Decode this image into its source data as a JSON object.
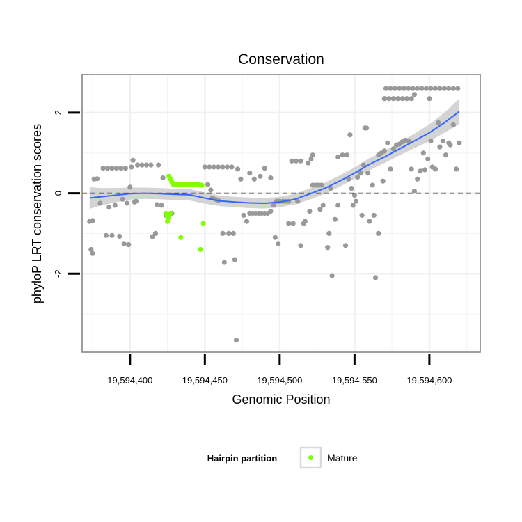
{
  "chart_data": {
    "type": "scatter",
    "title": "Conservation",
    "xlabel": "Genomic Position",
    "ylabel": "phyloP LRT conservation scores",
    "xlim": [
      19594368,
      19594634
    ],
    "ylim": [
      -3.95,
      2.95
    ],
    "x_ticks": [
      19594400,
      19594450,
      19594500,
      19594550,
      19594600
    ],
    "x_tick_labels": [
      "19,594,400",
      "19,594,450",
      "19,594,500",
      "19,594,550",
      "19,594,600"
    ],
    "y_ticks": [
      -2,
      0,
      2
    ],
    "y_tick_labels": [
      "-2",
      "0",
      "2"
    ],
    "reference_line": 0,
    "grid": true,
    "legend": {
      "title": "Hairpin partition",
      "entries": [
        {
          "label": "Mature",
          "color": "#7fff00"
        }
      ],
      "placement": "bottom"
    },
    "colors": {
      "other_points": "#999999",
      "mature_points": "#7fff00",
      "smooth_line": "#3366ff",
      "confidence_band": "#cccccc"
    },
    "smooth": {
      "x": [
        19594373,
        19594380,
        19594390,
        19594400,
        19594410,
        19594420,
        19594430,
        19594440,
        19594450,
        19594460,
        19594470,
        19594480,
        19594490,
        19594500,
        19594510,
        19594520,
        19594530,
        19594540,
        19594550,
        19594560,
        19594570,
        19594580,
        19594590,
        19594600,
        19594610,
        19594620
      ],
      "y": [
        -0.12,
        -0.09,
        -0.05,
        -0.01,
        0.0,
        -0.01,
        -0.03,
        -0.04,
        -0.12,
        -0.19,
        -0.22,
        -0.24,
        -0.25,
        -0.22,
        -0.15,
        -0.02,
        0.12,
        0.3,
        0.5,
        0.72,
        0.9,
        1.1,
        1.3,
        1.5,
        1.75,
        2.03
      ],
      "se": [
        0.27,
        0.22,
        0.18,
        0.15,
        0.14,
        0.14,
        0.14,
        0.14,
        0.14,
        0.13,
        0.13,
        0.13,
        0.13,
        0.13,
        0.13,
        0.14,
        0.14,
        0.14,
        0.14,
        0.15,
        0.15,
        0.16,
        0.18,
        0.21,
        0.25,
        0.32
      ]
    },
    "series": [
      {
        "name": "Other",
        "points": [
          [
            19594373,
            -0.7
          ],
          [
            19594375,
            -0.68
          ],
          [
            19594374,
            -1.4
          ],
          [
            19594375,
            -1.5
          ],
          [
            19594376,
            0.35
          ],
          [
            19594378,
            0.36
          ],
          [
            19594380,
            -0.25
          ],
          [
            19594382,
            0.62
          ],
          [
            19594385,
            0.62
          ],
          [
            19594388,
            0.62
          ],
          [
            19594391,
            0.62
          ],
          [
            19594394,
            0.62
          ],
          [
            19594397,
            0.62
          ],
          [
            19594384,
            -1.05
          ],
          [
            19594388,
            -1.05
          ],
          [
            19594386,
            -0.35
          ],
          [
            19594390,
            -0.3
          ],
          [
            19594393,
            -1.07
          ],
          [
            19594395,
            -0.15
          ],
          [
            19594398,
            -0.25
          ],
          [
            19594396,
            -1.25
          ],
          [
            19594399,
            -1.28
          ],
          [
            19594400,
            0.15
          ],
          [
            19594401,
            0.65
          ],
          [
            19594402,
            0.82
          ],
          [
            19594403,
            -0.22
          ],
          [
            19594404,
            -0.2
          ],
          [
            19594405,
            0.7
          ],
          [
            19594408,
            0.7
          ],
          [
            19594411,
            0.7
          ],
          [
            19594414,
            0.7
          ],
          [
            19594415,
            -1.08
          ],
          [
            19594417,
            -1.0
          ],
          [
            19594419,
            0.7
          ],
          [
            19594418,
            -0.28
          ],
          [
            19594421,
            -0.3
          ],
          [
            19594422,
            0.38
          ],
          [
            19594424,
            -0.55
          ],
          [
            19594428,
            -0.5
          ],
          [
            19594450,
            0.65
          ],
          [
            19594453,
            0.65
          ],
          [
            19594456,
            0.65
          ],
          [
            19594459,
            0.65
          ],
          [
            19594462,
            0.65
          ],
          [
            19594465,
            0.65
          ],
          [
            19594468,
            0.65
          ],
          [
            19594452,
            0.22
          ],
          [
            19594454,
            0.08
          ],
          [
            19594455,
            -0.12
          ],
          [
            19594457,
            -0.15
          ],
          [
            19594459,
            -0.18
          ],
          [
            19594462,
            -1.0
          ],
          [
            19594463,
            -1.72
          ],
          [
            19594466,
            -1.0
          ],
          [
            19594469,
            -1.0
          ],
          [
            19594470,
            -1.65
          ],
          [
            19594471,
            -3.65
          ],
          [
            19594472,
            0.6
          ],
          [
            19594474,
            0.35
          ],
          [
            19594476,
            -0.55
          ],
          [
            19594478,
            -0.7
          ],
          [
            19594480,
            -0.5
          ],
          [
            19594482,
            -0.5
          ],
          [
            19594484,
            -0.5
          ],
          [
            19594486,
            -0.5
          ],
          [
            19594488,
            -0.5
          ],
          [
            19594490,
            -0.5
          ],
          [
            19594492,
            -0.5
          ],
          [
            19594480,
            0.5
          ],
          [
            19594483,
            0.35
          ],
          [
            19594487,
            0.42
          ],
          [
            19594490,
            0.62
          ],
          [
            19594494,
            -0.45
          ],
          [
            19594496,
            -0.3
          ],
          [
            19594494,
            0.38
          ],
          [
            19594498,
            -0.2
          ],
          [
            19594500,
            -0.2
          ],
          [
            19594502,
            -0.2
          ],
          [
            19594504,
            -0.2
          ],
          [
            19594506,
            -0.2
          ],
          [
            19594497,
            -1.1
          ],
          [
            19594499,
            -1.25
          ],
          [
            19594506,
            -0.75
          ],
          [
            19594509,
            -0.75
          ],
          [
            19594508,
            0.8
          ],
          [
            19594511,
            0.8
          ],
          [
            19594514,
            0.8
          ],
          [
            19594512,
            -0.2
          ],
          [
            19594514,
            -1.3
          ],
          [
            19594516,
            -0.75
          ],
          [
            19594517,
            -0.7
          ],
          [
            19594519,
            0.75
          ],
          [
            19594521,
            0.85
          ],
          [
            19594522,
            0.95
          ],
          [
            19594520,
            -0.45
          ],
          [
            19594522,
            0.2
          ],
          [
            19594524,
            0.2
          ],
          [
            19594526,
            0.2
          ],
          [
            19594528,
            0.2
          ],
          [
            19594527,
            -0.4
          ],
          [
            19594529,
            -0.3
          ],
          [
            19594532,
            -1.35
          ],
          [
            19594533,
            -1.0
          ],
          [
            19594535,
            -2.05
          ],
          [
            19594534,
            0.12
          ],
          [
            19594537,
            -0.65
          ],
          [
            19594539,
            -0.3
          ],
          [
            19594539,
            0.9
          ],
          [
            19594542,
            0.95
          ],
          [
            19594545,
            0.95
          ],
          [
            19594547,
            1.45
          ],
          [
            19594544,
            -1.3
          ],
          [
            19594546,
            0.35
          ],
          [
            19594548,
            0.12
          ],
          [
            19594549,
            -0.3
          ],
          [
            19594550,
            -0.05
          ],
          [
            19594551,
            -0.2
          ],
          [
            19594552,
            0.4
          ],
          [
            19594554,
            0.5
          ],
          [
            19594555,
            -0.55
          ],
          [
            19594556,
            0.7
          ],
          [
            19594557,
            1.62
          ],
          [
            19594558,
            1.62
          ],
          [
            19594559,
            0.5
          ],
          [
            19594560,
            -0.7
          ],
          [
            19594562,
            0.2
          ],
          [
            19594563,
            -0.55
          ],
          [
            19594564,
            -2.1
          ],
          [
            19594566,
            0.95
          ],
          [
            19594568,
            1.0
          ],
          [
            19594566,
            -1.0
          ],
          [
            19594569,
            0.3
          ],
          [
            19594570,
            1.05
          ],
          [
            19594572,
            1.25
          ],
          [
            19594574,
            0.6
          ],
          [
            19594576,
            1.1
          ],
          [
            19594578,
            1.2
          ],
          [
            19594580,
            1.22
          ],
          [
            19594582,
            1.28
          ],
          [
            19594584,
            1.32
          ],
          [
            19594570,
            2.35
          ],
          [
            19594573,
            2.35
          ],
          [
            19594576,
            2.35
          ],
          [
            19594579,
            2.35
          ],
          [
            19594582,
            2.35
          ],
          [
            19594585,
            2.35
          ],
          [
            19594588,
            2.35
          ],
          [
            19594571,
            2.6
          ],
          [
            19594574,
            2.6
          ],
          [
            19594577,
            2.6
          ],
          [
            19594580,
            2.6
          ],
          [
            19594583,
            2.6
          ],
          [
            19594586,
            2.6
          ],
          [
            19594589,
            2.6
          ],
          [
            19594592,
            2.6
          ],
          [
            19594595,
            2.6
          ],
          [
            19594598,
            2.6
          ],
          [
            19594601,
            2.6
          ],
          [
            19594604,
            2.6
          ],
          [
            19594607,
            2.6
          ],
          [
            19594610,
            2.6
          ],
          [
            19594613,
            2.6
          ],
          [
            19594616,
            2.6
          ],
          [
            19594619,
            2.6
          ],
          [
            19594590,
            2.45
          ],
          [
            19594600,
            2.35
          ],
          [
            19594586,
            1.3
          ],
          [
            19594588,
            0.6
          ],
          [
            19594590,
            0.05
          ],
          [
            19594592,
            0.35
          ],
          [
            19594594,
            0.55
          ],
          [
            19594596,
            1.0
          ],
          [
            19594597,
            0.58
          ],
          [
            19594599,
            0.85
          ],
          [
            19594601,
            1.3
          ],
          [
            19594602,
            0.65
          ],
          [
            19594604,
            0.6
          ],
          [
            19594606,
            1.75
          ],
          [
            19594607,
            1.15
          ],
          [
            19594609,
            1.3
          ],
          [
            19594611,
            0.95
          ],
          [
            19594613,
            1.25
          ],
          [
            19594614,
            1.2
          ],
          [
            19594616,
            1.7
          ],
          [
            19594618,
            0.6
          ],
          [
            19594620,
            1.25
          ]
        ]
      },
      {
        "name": "Mature",
        "points": [
          [
            19594426,
            0.42
          ],
          [
            19594427,
            0.35
          ],
          [
            19594428,
            0.28
          ],
          [
            19594429,
            0.22
          ],
          [
            19594430,
            0.22
          ],
          [
            19594432,
            0.22
          ],
          [
            19594434,
            0.22
          ],
          [
            19594436,
            0.22
          ],
          [
            19594438,
            0.22
          ],
          [
            19594440,
            0.22
          ],
          [
            19594442,
            0.22
          ],
          [
            19594444,
            0.22
          ],
          [
            19594446,
            0.22
          ],
          [
            19594448,
            0.2
          ],
          [
            19594424,
            -0.5
          ],
          [
            19594425,
            -0.58
          ],
          [
            19594426,
            -0.6
          ],
          [
            19594427,
            -0.5
          ],
          [
            19594425,
            -0.7
          ],
          [
            19594434,
            -1.1
          ],
          [
            19594447,
            -1.4
          ],
          [
            19594449,
            -0.75
          ]
        ]
      }
    ]
  }
}
